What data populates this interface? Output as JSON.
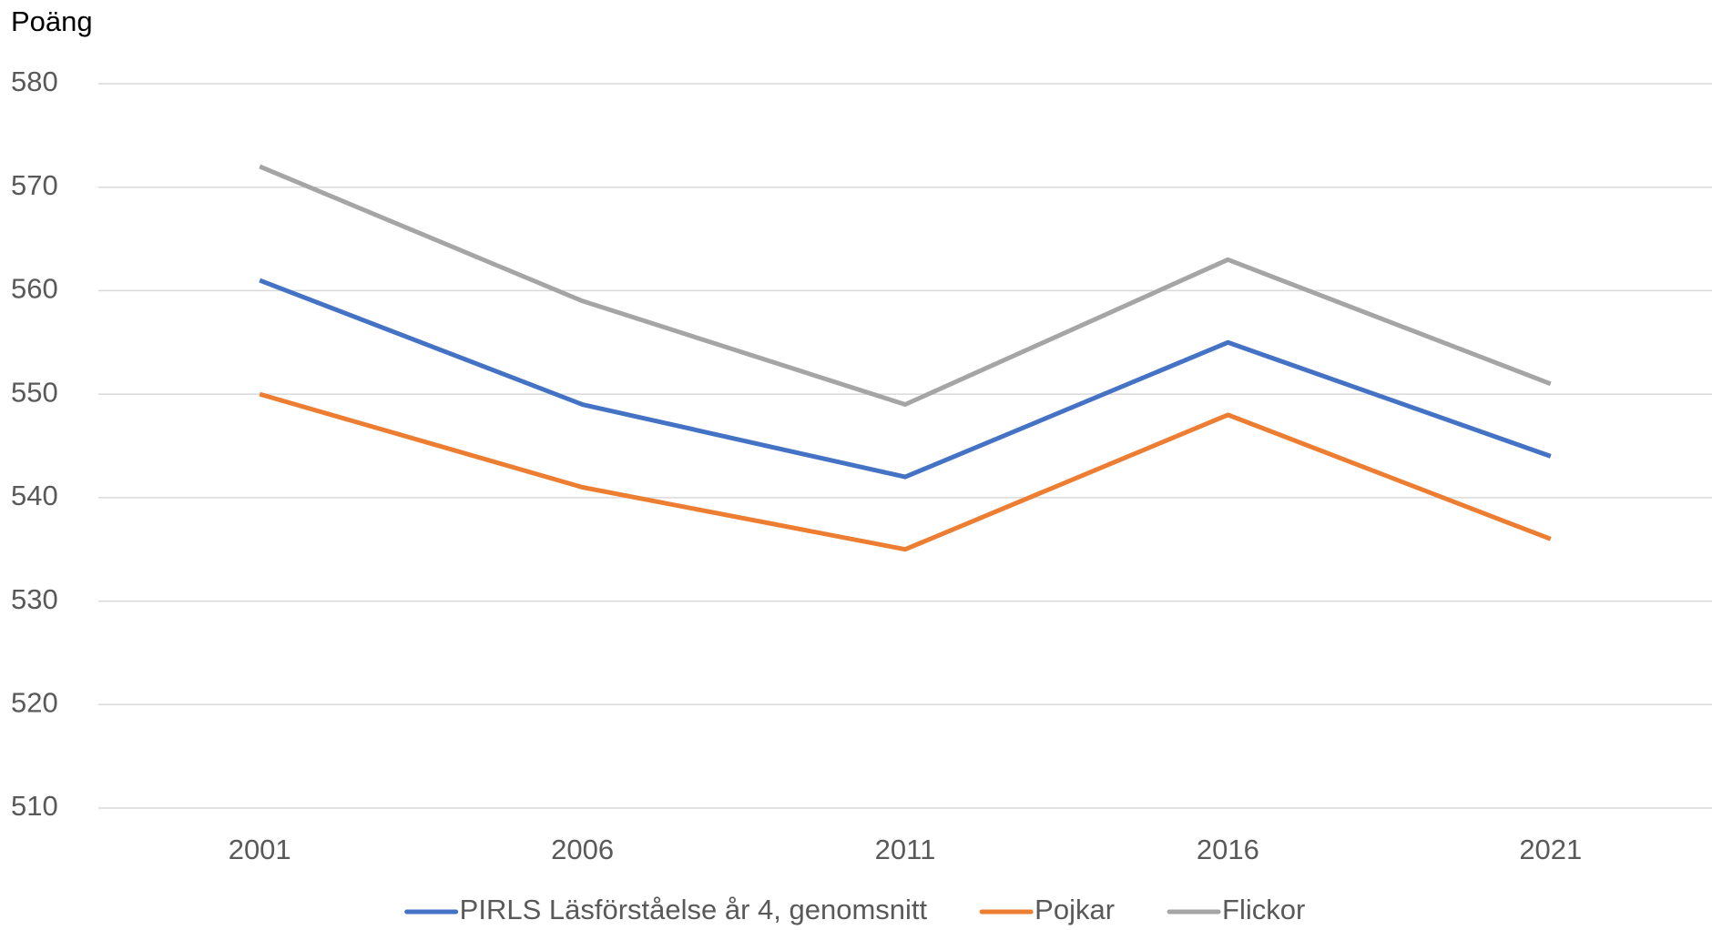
{
  "chart_data": {
    "type": "line",
    "y_label": "Poäng",
    "categories": [
      "2001",
      "2006",
      "2011",
      "2016",
      "2021"
    ],
    "series": [
      {
        "name": "PIRLS Läsförståelse år 4, genomsnitt",
        "color": "#4472c4",
        "values": [
          561,
          549,
          542,
          555,
          544
        ]
      },
      {
        "name": "Pojkar",
        "color": "#ed7d31",
        "values": [
          550,
          541,
          535,
          548,
          536
        ]
      },
      {
        "name": "Flickor",
        "color": "#a5a5a5",
        "values": [
          572,
          559,
          549,
          563,
          551
        ]
      }
    ],
    "ylim": [
      510,
      580
    ],
    "yticks": [
      510,
      520,
      530,
      540,
      550,
      560,
      570,
      580
    ],
    "grid": true,
    "legend": "bottom"
  }
}
